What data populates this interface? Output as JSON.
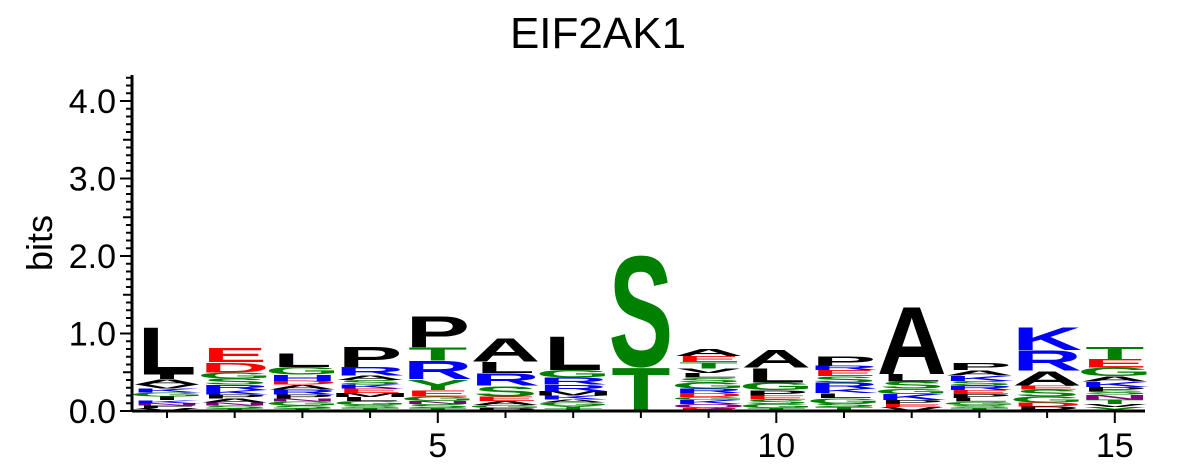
{
  "chart_data": {
    "type": "sequence-logo",
    "title": "EIF2AK1",
    "ylabel": "bits",
    "xlabel": "",
    "ylim": [
      0,
      4.3
    ],
    "y_ticks": [
      "0.0",
      "1.0",
      "2.0",
      "3.0",
      "4.0"
    ],
    "x_ticks": [
      "5",
      "10",
      "15"
    ],
    "colors": {
      "A": "#000000",
      "L": "#000000",
      "I": "#000000",
      "M": "#000000",
      "V": "#000000",
      "F": "#000000",
      "W": "#000000",
      "P": "#000000",
      "R": "#0000ff",
      "K": "#0000ff",
      "H": "#0000ff",
      "D": "#ff0000",
      "E": "#ff0000",
      "S": "#008000",
      "T": "#008000",
      "G": "#008000",
      "C": "#008000",
      "Y": "#008000",
      "N": "#800080",
      "Q": "#800080"
    },
    "positions": [
      {
        "pos": 1,
        "letters": [
          [
            "V",
            0.04
          ],
          [
            "F",
            0.03
          ],
          [
            "N",
            0.03
          ],
          [
            "K",
            0.04
          ],
          [
            "I",
            0.05
          ],
          [
            "G",
            0.05
          ],
          [
            "K",
            0.05
          ],
          [
            "V",
            0.05
          ],
          [
            "A",
            0.07
          ],
          [
            "I",
            0.06
          ],
          [
            "L",
            0.63
          ]
        ]
      },
      {
        "pos": 2,
        "letters": [
          [
            "T",
            0.03
          ],
          [
            "S",
            0.04
          ],
          [
            "N",
            0.04
          ],
          [
            "A",
            0.05
          ],
          [
            "P",
            0.05
          ],
          [
            "K",
            0.06
          ],
          [
            "R",
            0.07
          ],
          [
            "S",
            0.08
          ],
          [
            "G",
            0.08
          ],
          [
            "D",
            0.13
          ],
          [
            "E",
            0.19
          ]
        ]
      },
      {
        "pos": 3,
        "letters": [
          [
            "T",
            0.03
          ],
          [
            "S",
            0.04
          ],
          [
            "G",
            0.05
          ],
          [
            "N",
            0.04
          ],
          [
            "P",
            0.05
          ],
          [
            "R",
            0.07
          ],
          [
            "A",
            0.06
          ],
          [
            "D",
            0.05
          ],
          [
            "H",
            0.08
          ],
          [
            "G",
            0.1
          ],
          [
            "L",
            0.18
          ]
        ]
      },
      {
        "pos": 4,
        "letters": [
          [
            "T",
            0.04
          ],
          [
            "S",
            0.04
          ],
          [
            "G",
            0.05
          ],
          [
            "L",
            0.05
          ],
          [
            "M",
            0.05
          ],
          [
            "E",
            0.06
          ],
          [
            "K",
            0.05
          ],
          [
            "S",
            0.06
          ],
          [
            "A",
            0.06
          ],
          [
            "R",
            0.11
          ],
          [
            "P",
            0.27
          ]
        ]
      },
      {
        "pos": 5,
        "letters": [
          [
            "T",
            0.04
          ],
          [
            "S",
            0.05
          ],
          [
            "N",
            0.04
          ],
          [
            "G",
            0.06
          ],
          [
            "E",
            0.08
          ],
          [
            "Y",
            0.14
          ],
          [
            "R",
            0.24
          ],
          [
            "T",
            0.17
          ],
          [
            "P",
            0.41
          ]
        ]
      },
      {
        "pos": 6,
        "letters": [
          [
            "P",
            0.04
          ],
          [
            "G",
            0.04
          ],
          [
            "A",
            0.05
          ],
          [
            "E",
            0.06
          ],
          [
            "S",
            0.14
          ],
          [
            "R",
            0.16
          ],
          [
            "L",
            0.15
          ],
          [
            "A",
            0.31
          ]
        ]
      },
      {
        "pos": 7,
        "letters": [
          [
            "T",
            0.04
          ],
          [
            "Y",
            0.03
          ],
          [
            "G",
            0.04
          ],
          [
            "A",
            0.04
          ],
          [
            "K",
            0.05
          ],
          [
            "M",
            0.06
          ],
          [
            "R",
            0.08
          ],
          [
            "R",
            0.09
          ],
          [
            "G",
            0.1
          ],
          [
            "L",
            0.45
          ]
        ]
      },
      {
        "pos": 8,
        "letters": [
          [
            "T",
            0.58
          ],
          [
            "S",
            1.47
          ]
        ]
      },
      {
        "pos": 9,
        "letters": [
          [
            "E",
            0.04
          ],
          [
            "Q",
            0.05
          ],
          [
            "K",
            0.05
          ],
          [
            "G",
            0.04
          ],
          [
            "D",
            0.05
          ],
          [
            "R",
            0.06
          ],
          [
            "G",
            0.08
          ],
          [
            "S",
            0.06
          ],
          [
            "L",
            0.06
          ],
          [
            "V",
            0.06
          ],
          [
            "T",
            0.08
          ],
          [
            "E",
            0.08
          ],
          [
            "A",
            0.09
          ]
        ]
      },
      {
        "pos": 10,
        "letters": [
          [
            "T",
            0.04
          ],
          [
            "G",
            0.05
          ],
          [
            "S",
            0.06
          ],
          [
            "E",
            0.05
          ],
          [
            "P",
            0.07
          ],
          [
            "G",
            0.1
          ],
          [
            "L",
            0.19
          ],
          [
            "A",
            0.23
          ]
        ]
      },
      {
        "pos": 11,
        "letters": [
          [
            "T",
            0.05
          ],
          [
            "S",
            0.05
          ],
          [
            "G",
            0.07
          ],
          [
            "L",
            0.06
          ],
          [
            "K",
            0.06
          ],
          [
            "R",
            0.08
          ],
          [
            "S",
            0.08
          ],
          [
            "E",
            0.08
          ],
          [
            "R",
            0.06
          ],
          [
            "P",
            0.12
          ]
        ]
      },
      {
        "pos": 12,
        "letters": [
          [
            "V",
            0.05
          ],
          [
            "E",
            0.04
          ],
          [
            "P",
            0.05
          ],
          [
            "K",
            0.08
          ],
          [
            "G",
            0.07
          ],
          [
            "S",
            0.09
          ],
          [
            "L",
            0.1
          ],
          [
            "A",
            0.9
          ]
        ]
      },
      {
        "pos": 13,
        "letters": [
          [
            "T",
            0.04
          ],
          [
            "S",
            0.04
          ],
          [
            "G",
            0.04
          ],
          [
            "L",
            0.05
          ],
          [
            "P",
            0.05
          ],
          [
            "E",
            0.05
          ],
          [
            "R",
            0.06
          ],
          [
            "S",
            0.06
          ],
          [
            "K",
            0.07
          ],
          [
            "A",
            0.07
          ],
          [
            "P",
            0.09
          ]
        ]
      },
      {
        "pos": 14,
        "letters": [
          [
            "P",
            0.06
          ],
          [
            "D",
            0.05
          ],
          [
            "G",
            0.08
          ],
          [
            "S",
            0.09
          ],
          [
            "E",
            0.05
          ],
          [
            "A",
            0.19
          ],
          [
            "R",
            0.27
          ],
          [
            "K",
            0.3
          ]
        ]
      },
      {
        "pos": 15,
        "letters": [
          [
            "Y",
            0.05
          ],
          [
            "V",
            0.04
          ],
          [
            "T",
            0.06
          ],
          [
            "N",
            0.06
          ],
          [
            "S",
            0.05
          ],
          [
            "P",
            0.05
          ],
          [
            "K",
            0.07
          ],
          [
            "A",
            0.07
          ],
          [
            "G",
            0.11
          ],
          [
            "E",
            0.11
          ],
          [
            "T",
            0.16
          ]
        ]
      }
    ]
  }
}
